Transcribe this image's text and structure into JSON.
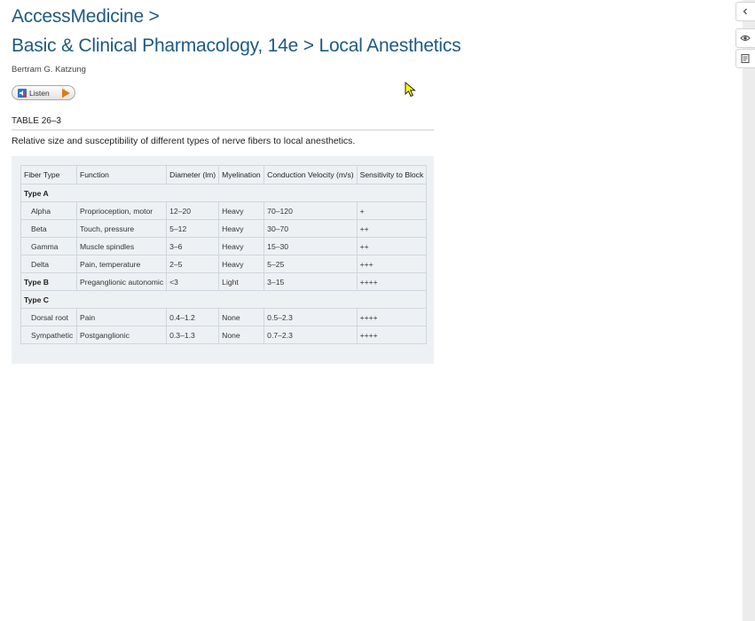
{
  "breadcrumb": {
    "site": "AccessMedicine >"
  },
  "page": {
    "title": "Basic & Clinical Pharmacology, 14e > Local Anesthetics",
    "author": "Bertram G. Katzung"
  },
  "listen": {
    "label": "Listen"
  },
  "table": {
    "label": "TABLE 26–3",
    "caption": "Relative size and susceptibility of different types of nerve fibers to local anesthetics.",
    "headers": [
      "Fiber Type",
      "Function",
      "Diameter (lm)",
      "Myelination",
      "Conduction Velocity (m/s)",
      "Sensitivity to Block"
    ],
    "rows": [
      {
        "group": "Type A"
      },
      {
        "cells": [
          "Alpha",
          "Proprioception, motor",
          "12–20",
          "Heavy",
          "70–120",
          "+"
        ]
      },
      {
        "cells": [
          "Beta",
          "Touch, pressure",
          "5–12",
          "Heavy",
          "30–70",
          "++"
        ]
      },
      {
        "cells": [
          "Gamma",
          "Muscle spindles",
          "3–6",
          "Heavy",
          "15–30",
          "++"
        ]
      },
      {
        "cells": [
          "Delta",
          "Pain, temperature",
          "2–5",
          "Heavy",
          "5–25",
          "+++"
        ]
      },
      {
        "cells": [
          "Type B",
          "Preganglionic autonomic",
          "<3",
          "Light",
          "3–15",
          "++++"
        ],
        "bold_first": true
      },
      {
        "group": "Type C"
      },
      {
        "cells": [
          "Dorsal root",
          "Pain",
          "0.4–1.2",
          "None",
          "0.5–2.3",
          "++++"
        ]
      },
      {
        "cells": [
          "Sympathetic",
          "Postganglionic",
          "0.3–1.3",
          "None",
          "0.7–2.3",
          "++++"
        ]
      }
    ]
  },
  "sidebar": {
    "collapse_icon": "chevron-left-icon",
    "view_icon": "eye-icon",
    "notes_icon": "notes-icon"
  },
  "colors": {
    "link": "#1d5a82",
    "play": "#e07a10",
    "panel": "#eef1f4"
  }
}
